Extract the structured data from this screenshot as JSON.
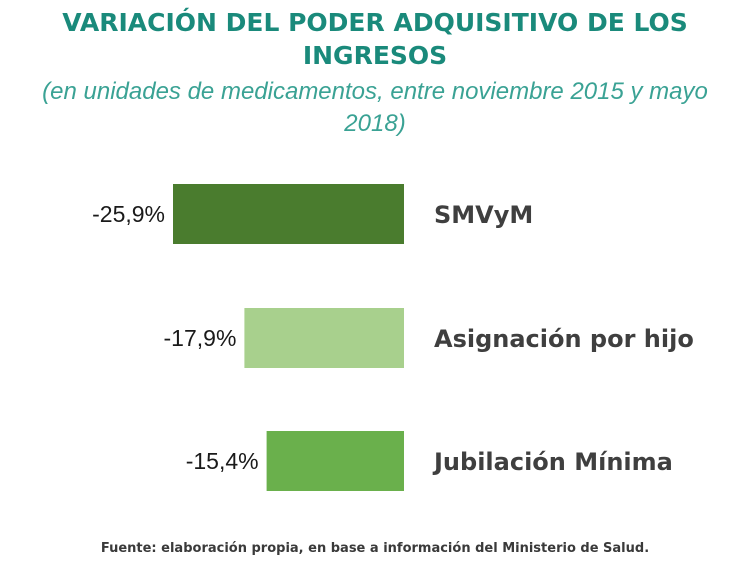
{
  "title": "VARIACIÓN DEL PODER ADQUISITIVO DE LOS INGRESOS",
  "subtitle": "(en unidades de medicamentos, entre noviembre 2015 y mayo 2018)",
  "source": "Fuente: elaboración propia, en base a información del Ministerio de Salud.",
  "colors": {
    "title": "#1a8a7b",
    "subtitle": "#3aa294",
    "bar_dark": "#4a7c2e",
    "bar_light": "#a8d08d",
    "bar_medium": "#6ab04c"
  },
  "chart_data": {
    "type": "bar",
    "orientation": "horizontal",
    "title": "VARIACIÓN DEL PODER ADQUISITIVO DE LOS INGRESOS",
    "subtitle": "(en unidades de medicamentos, entre noviembre 2015 y mayo 2018)",
    "categories": [
      "SMVyM",
      "Asignación por hijo",
      "Jubilación Mínima"
    ],
    "values": [
      -25.9,
      -17.9,
      -15.4
    ],
    "value_labels": [
      "-25,9%",
      "-17,9%",
      "-15,4%"
    ],
    "unit": "%",
    "grid": false,
    "legend": "none",
    "bar_colors": [
      "#4a7c2e",
      "#a8d08d",
      "#6ab04c"
    ]
  }
}
